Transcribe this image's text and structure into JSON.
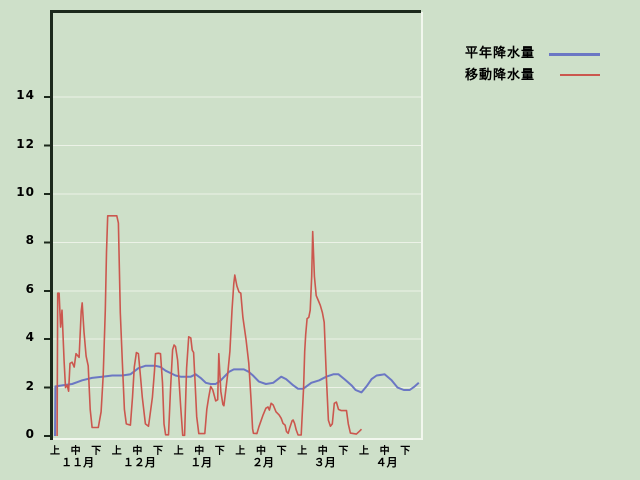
{
  "colors": {
    "background": "#cee0c9",
    "grid": "#ecf2e7",
    "frame_dark": "#1c291c",
    "frame_light": "#f2f7ee",
    "text": "#000000",
    "normal_line": "#6b77c4",
    "moving_line": "#cb574e"
  },
  "legend": {
    "items": [
      {
        "id": "normal-precipitation",
        "label": "平年降水量",
        "color": "#6b77c4"
      },
      {
        "id": "moving-precipitation",
        "label": "移動降水量",
        "color": "#cb574e"
      }
    ]
  },
  "chart_data": {
    "type": "line",
    "title": "",
    "grid": "horizontal",
    "legend_position": "top-right",
    "y_axis": {
      "min": 0,
      "max": 15.5,
      "ticks": [
        0,
        2,
        4,
        6,
        8,
        10,
        12,
        14
      ]
    },
    "x_axis": {
      "decad_labels": [
        "上",
        "中",
        "下"
      ],
      "months": [
        "１１月",
        "１２月",
        "１月",
        "２月",
        "３月",
        "４月"
      ],
      "note": "x unit = decad index 0..17 (6 months x 上/中/下)"
    },
    "series": [
      {
        "id": "normal-precipitation",
        "name": "平年降水量",
        "color": "#6b77c4",
        "points": [
          [
            0,
            0
          ],
          [
            0.02,
            2.05
          ],
          [
            0.39,
            2.1
          ],
          [
            0.83,
            2.15
          ],
          [
            1.32,
            2.3
          ],
          [
            1.8,
            2.4
          ],
          [
            2.29,
            2.45
          ],
          [
            2.78,
            2.5
          ],
          [
            3.27,
            2.5
          ],
          [
            3.66,
            2.55
          ],
          [
            4.05,
            2.8
          ],
          [
            4.39,
            2.9
          ],
          [
            4.88,
            2.9
          ],
          [
            5.12,
            2.85
          ],
          [
            5.37,
            2.7
          ],
          [
            5.61,
            2.6
          ],
          [
            5.85,
            2.5
          ],
          [
            6.1,
            2.45
          ],
          [
            6.59,
            2.45
          ],
          [
            6.83,
            2.55
          ],
          [
            7.07,
            2.4
          ],
          [
            7.32,
            2.2
          ],
          [
            7.56,
            2.15
          ],
          [
            7.8,
            2.15
          ],
          [
            8.05,
            2.3
          ],
          [
            8.44,
            2.65
          ],
          [
            8.68,
            2.75
          ],
          [
            9.17,
            2.75
          ],
          [
            9.41,
            2.65
          ],
          [
            9.61,
            2.5
          ],
          [
            9.9,
            2.25
          ],
          [
            10.24,
            2.15
          ],
          [
            10.59,
            2.2
          ],
          [
            10.98,
            2.45
          ],
          [
            11.22,
            2.35
          ],
          [
            11.56,
            2.1
          ],
          [
            11.8,
            1.95
          ],
          [
            12.05,
            1.95
          ],
          [
            12.44,
            2.2
          ],
          [
            12.83,
            2.3
          ],
          [
            13.17,
            2.45
          ],
          [
            13.51,
            2.55
          ],
          [
            13.76,
            2.55
          ],
          [
            14.05,
            2.35
          ],
          [
            14.39,
            2.1
          ],
          [
            14.59,
            1.9
          ],
          [
            14.88,
            1.8
          ],
          [
            15.12,
            2.05
          ],
          [
            15.37,
            2.35
          ],
          [
            15.61,
            2.5
          ],
          [
            16.0,
            2.55
          ],
          [
            16.34,
            2.3
          ],
          [
            16.63,
            2.0
          ],
          [
            16.93,
            1.9
          ],
          [
            17.22,
            1.9
          ],
          [
            17.46,
            2.05
          ],
          [
            17.66,
            2.2
          ]
        ]
      },
      {
        "id": "moving-precipitation",
        "name": "移動降水量",
        "color": "#cb574e",
        "points": [
          [
            0.1,
            0
          ],
          [
            0.13,
            5.9
          ],
          [
            0.2,
            5.9
          ],
          [
            0.27,
            4.5
          ],
          [
            0.34,
            5.2
          ],
          [
            0.44,
            3.1
          ],
          [
            0.51,
            2.0
          ],
          [
            0.59,
            2.1
          ],
          [
            0.66,
            1.85
          ],
          [
            0.73,
            3.0
          ],
          [
            0.83,
            3.05
          ],
          [
            0.93,
            2.85
          ],
          [
            1.02,
            3.4
          ],
          [
            1.17,
            3.25
          ],
          [
            1.27,
            5.15
          ],
          [
            1.32,
            5.5
          ],
          [
            1.41,
            4.3
          ],
          [
            1.51,
            3.3
          ],
          [
            1.61,
            2.9
          ],
          [
            1.71,
            1.1
          ],
          [
            1.8,
            0.35
          ],
          [
            2.1,
            0.35
          ],
          [
            2.24,
            1.0
          ],
          [
            2.34,
            2.5
          ],
          [
            2.44,
            5.2
          ],
          [
            2.5,
            7.6
          ],
          [
            2.56,
            9.1
          ],
          [
            3.0,
            9.1
          ],
          [
            3.08,
            8.8
          ],
          [
            3.17,
            5.1
          ],
          [
            3.27,
            3.0
          ],
          [
            3.37,
            1.1
          ],
          [
            3.46,
            0.5
          ],
          [
            3.66,
            0.45
          ],
          [
            3.76,
            1.6
          ],
          [
            3.85,
            2.85
          ],
          [
            3.95,
            3.45
          ],
          [
            4.05,
            3.4
          ],
          [
            4.15,
            2.45
          ],
          [
            4.24,
            1.6
          ],
          [
            4.39,
            0.5
          ],
          [
            4.54,
            0.4
          ],
          [
            4.73,
            1.6
          ],
          [
            4.83,
            2.7
          ],
          [
            4.88,
            3.4
          ],
          [
            5.02,
            3.42
          ],
          [
            5.12,
            3.4
          ],
          [
            5.22,
            2.2
          ],
          [
            5.29,
            0.5
          ],
          [
            5.37,
            0.05
          ],
          [
            5.51,
            0.05
          ],
          [
            5.61,
            2.0
          ],
          [
            5.71,
            3.56
          ],
          [
            5.78,
            3.76
          ],
          [
            5.85,
            3.7
          ],
          [
            5.95,
            3.14
          ],
          [
            6.02,
            2.3
          ],
          [
            6.1,
            1.2
          ],
          [
            6.2,
            0.03
          ],
          [
            6.29,
            0.03
          ],
          [
            6.39,
            2.8
          ],
          [
            6.49,
            4.1
          ],
          [
            6.59,
            4.05
          ],
          [
            6.66,
            3.55
          ],
          [
            6.73,
            3.45
          ],
          [
            6.8,
            2.2
          ],
          [
            6.88,
            0.8
          ],
          [
            6.98,
            0.1
          ],
          [
            7.27,
            0.1
          ],
          [
            7.37,
            1.1
          ],
          [
            7.46,
            1.6
          ],
          [
            7.56,
            2.05
          ],
          [
            7.66,
            1.9
          ],
          [
            7.8,
            1.45
          ],
          [
            7.9,
            1.5
          ],
          [
            7.95,
            3.4
          ],
          [
            8.05,
            1.85
          ],
          [
            8.15,
            1.3
          ],
          [
            8.2,
            1.25
          ],
          [
            8.29,
            1.9
          ],
          [
            8.39,
            2.6
          ],
          [
            8.49,
            3.5
          ],
          [
            8.59,
            5.2
          ],
          [
            8.68,
            6.3
          ],
          [
            8.73,
            6.65
          ],
          [
            8.83,
            6.2
          ],
          [
            8.93,
            5.95
          ],
          [
            9.02,
            5.9
          ],
          [
            9.12,
            4.9
          ],
          [
            9.27,
            4.0
          ],
          [
            9.41,
            3.0
          ],
          [
            9.51,
            1.6
          ],
          [
            9.59,
            0.3
          ],
          [
            9.63,
            0.11
          ],
          [
            9.8,
            0.1
          ],
          [
            9.9,
            0.38
          ],
          [
            10.1,
            0.87
          ],
          [
            10.24,
            1.15
          ],
          [
            10.34,
            1.2
          ],
          [
            10.41,
            1.07
          ],
          [
            10.49,
            1.35
          ],
          [
            10.59,
            1.28
          ],
          [
            10.73,
            1.0
          ],
          [
            10.88,
            0.87
          ],
          [
            10.98,
            0.73
          ],
          [
            11.07,
            0.52
          ],
          [
            11.17,
            0.45
          ],
          [
            11.24,
            0.18
          ],
          [
            11.32,
            0.11
          ],
          [
            11.39,
            0.32
          ],
          [
            11.51,
            0.63
          ],
          [
            11.56,
            0.66
          ],
          [
            11.63,
            0.52
          ],
          [
            11.71,
            0.25
          ],
          [
            11.8,
            0.04
          ],
          [
            11.95,
            0.04
          ],
          [
            12.07,
            2.0
          ],
          [
            12.12,
            3.5
          ],
          [
            12.17,
            4.2
          ],
          [
            12.24,
            4.85
          ],
          [
            12.32,
            4.9
          ],
          [
            12.39,
            5.2
          ],
          [
            12.46,
            6.6
          ],
          [
            12.51,
            8.45
          ],
          [
            12.59,
            6.6
          ],
          [
            12.68,
            5.8
          ],
          [
            12.78,
            5.6
          ],
          [
            12.88,
            5.4
          ],
          [
            12.98,
            5.1
          ],
          [
            13.07,
            4.7
          ],
          [
            13.17,
            2.5
          ],
          [
            13.27,
            0.65
          ],
          [
            13.37,
            0.4
          ],
          [
            13.46,
            0.5
          ],
          [
            13.56,
            1.35
          ],
          [
            13.66,
            1.4
          ],
          [
            13.76,
            1.1
          ],
          [
            13.9,
            1.05
          ],
          [
            14.15,
            1.05
          ],
          [
            14.24,
            0.5
          ],
          [
            14.34,
            0.12
          ],
          [
            14.63,
            0.08
          ],
          [
            14.78,
            0.2
          ],
          [
            14.88,
            0.28
          ]
        ]
      }
    ]
  }
}
